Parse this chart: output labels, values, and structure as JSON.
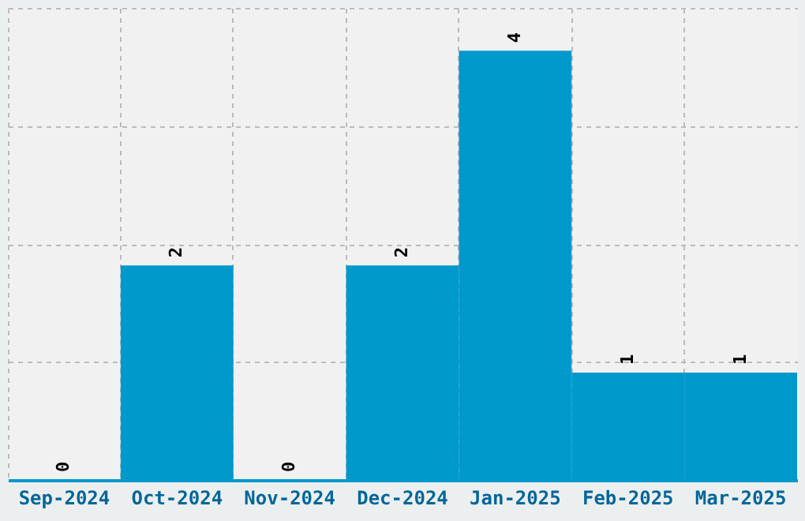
{
  "chart_data": {
    "type": "bar",
    "categories": [
      "Sep-2024",
      "Oct-2024",
      "Nov-2024",
      "Dec-2024",
      "Jan-2025",
      "Feb-2025",
      "Mar-2025"
    ],
    "values": [
      0,
      2,
      0,
      2,
      4,
      1,
      1
    ],
    "color": "#0099cc",
    "ylim": [
      0,
      4.4
    ],
    "yticks": [
      {
        "value": 0,
        "label": null
      },
      {
        "value": 1.1,
        "label": null
      },
      {
        "value": 2.2,
        "label": null
      },
      {
        "value": 3.3,
        "label": null
      },
      {
        "value": 4.4,
        "label": null
      }
    ],
    "grid": true,
    "data_labels": true,
    "tick_labels": "x"
  }
}
